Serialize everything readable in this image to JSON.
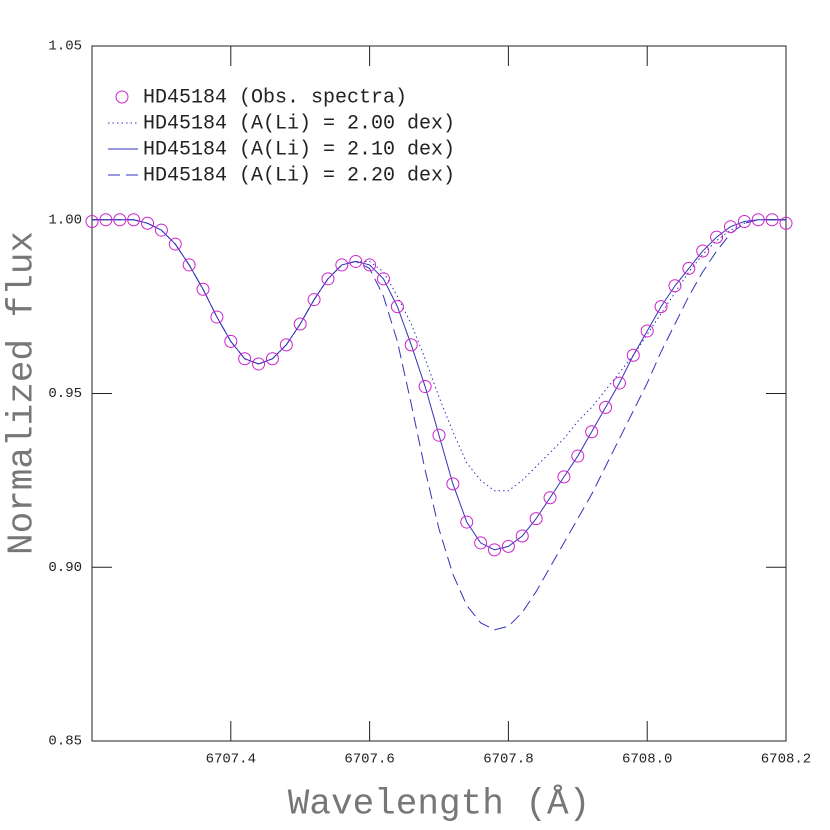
{
  "chart_data": {
    "type": "line",
    "xlabel": "Wavelength (Å)",
    "ylabel": "Normalized flux",
    "xlim": [
      6707.2,
      6708.2
    ],
    "ylim": [
      0.85,
      1.05
    ],
    "xticks": [
      6707.4,
      6707.6,
      6707.8,
      {
        "value": 6708,
        "label": "6708.0"
      },
      6708.2
    ],
    "yticks": [
      {
        "value": 0.85,
        "label": "0.85"
      },
      {
        "value": 0.9,
        "label": "0.90"
      },
      {
        "value": 0.95,
        "label": "0.95"
      },
      {
        "value": 1,
        "label": "1.00"
      },
      {
        "value": 1.05,
        "label": "1.05"
      }
    ],
    "x": [
      6707.2,
      6707.22,
      6707.24,
      6707.26,
      6707.28,
      6707.3,
      6707.32,
      6707.34,
      6707.36,
      6707.38,
      6707.4,
      6707.42,
      6707.44,
      6707.46,
      6707.48,
      6707.5,
      6707.52,
      6707.54,
      6707.56,
      6707.58,
      6707.6,
      6707.62,
      6707.64,
      6707.66,
      6707.68,
      6707.7,
      6707.72,
      6707.74,
      6707.76,
      6707.78,
      6707.8,
      6707.82,
      6707.84,
      6707.86,
      6707.88,
      6707.9,
      6707.92,
      6707.94,
      6707.96,
      6707.98,
      6708.0,
      6708.02,
      6708.04,
      6708.06,
      6708.08,
      6708.1,
      6708.12,
      6708.14,
      6708.16,
      6708.18,
      6708.2
    ],
    "series": [
      {
        "name": "HD45184 (Obs. spectra)",
        "color": "#cc22cc",
        "style": "circle",
        "values": [
          0.9995,
          1.0,
          1.0,
          1.0,
          0.999,
          0.997,
          0.993,
          0.987,
          0.98,
          0.972,
          0.965,
          0.96,
          0.9585,
          0.96,
          0.964,
          0.97,
          0.977,
          0.983,
          0.987,
          0.988,
          0.987,
          0.983,
          0.975,
          0.964,
          0.952,
          0.938,
          0.924,
          0.913,
          0.907,
          0.905,
          0.906,
          0.909,
          0.914,
          0.92,
          0.926,
          0.932,
          0.939,
          0.946,
          0.953,
          0.961,
          0.968,
          0.975,
          0.981,
          0.986,
          0.991,
          0.995,
          0.998,
          0.9995,
          1.0,
          1.0,
          0.999
        ]
      },
      {
        "name": "HD45184 (A(Li) = 2.00 dex)",
        "color": "#3333bb",
        "style": "dotted",
        "values": [
          1.0,
          1.0,
          1.0,
          1.0,
          0.999,
          0.997,
          0.993,
          0.987,
          0.98,
          0.972,
          0.965,
          0.96,
          0.9585,
          0.96,
          0.964,
          0.97,
          0.977,
          0.983,
          0.987,
          0.988,
          0.988,
          0.985,
          0.978,
          0.97,
          0.96,
          0.949,
          0.939,
          0.93,
          0.925,
          0.922,
          0.922,
          0.925,
          0.929,
          0.933,
          0.937,
          0.942,
          0.946,
          0.951,
          0.956,
          0.961,
          0.967,
          0.973,
          0.979,
          0.985,
          0.99,
          0.994,
          0.997,
          0.999,
          1.0,
          1.0,
          1.0
        ]
      },
      {
        "name": "HD45184 (A(Li) = 2.10 dex)",
        "color": "#3333bb",
        "style": "solid",
        "values": [
          1.0,
          1.0,
          1.0,
          1.0,
          0.999,
          0.997,
          0.993,
          0.987,
          0.98,
          0.972,
          0.965,
          0.96,
          0.9585,
          0.96,
          0.964,
          0.97,
          0.977,
          0.983,
          0.987,
          0.988,
          0.987,
          0.983,
          0.975,
          0.964,
          0.952,
          0.938,
          0.924,
          0.913,
          0.907,
          0.905,
          0.906,
          0.909,
          0.914,
          0.92,
          0.926,
          0.932,
          0.939,
          0.946,
          0.953,
          0.961,
          0.968,
          0.975,
          0.981,
          0.986,
          0.991,
          0.995,
          0.998,
          0.9995,
          1.0,
          1.0,
          1.0
        ]
      },
      {
        "name": "HD45184 (A(Li) = 2.20 dex)",
        "color": "#3333bb",
        "style": "dashed",
        "values": [
          1.0,
          1.0,
          1.0,
          1.0,
          0.999,
          0.997,
          0.993,
          0.987,
          0.98,
          0.972,
          0.965,
          0.96,
          0.9585,
          0.96,
          0.964,
          0.97,
          0.977,
          0.983,
          0.987,
          0.988,
          0.986,
          0.978,
          0.965,
          0.947,
          0.928,
          0.911,
          0.898,
          0.889,
          0.884,
          0.882,
          0.883,
          0.887,
          0.893,
          0.9,
          0.907,
          0.914,
          0.921,
          0.929,
          0.937,
          0.945,
          0.953,
          0.962,
          0.97,
          0.978,
          0.985,
          0.991,
          0.996,
          0.999,
          1.0,
          1.0,
          1.0
        ]
      }
    ]
  }
}
